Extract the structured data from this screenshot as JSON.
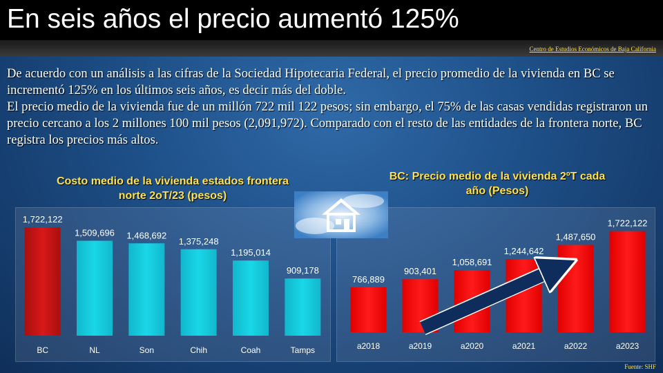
{
  "title": "En seis años el precio aumentó 125%",
  "organization": "Centro de Estudios Económicos de Baja California",
  "paragraphs": [
    "De acuerdo con un análisis a las cifras de la Sociedad Hipotecaria Federal, el precio promedio de la vivienda en BC se incrementó 125% en los últimos seis años, es decir más del doble.",
    "El precio medio de la vivienda fue de un millón 722 mil 122 pesos; sin embargo, el 75% de las casas vendidas registraron un precio cercano a los 2 millones 100 mil pesos (2,091,972). Comparado con el resto de las entidades de la frontera norte, BC registra los precios más altos."
  ],
  "source": "Fuente: SHF",
  "colors": {
    "highlight_bar": "#d81818",
    "state_bar": "#19d7e8",
    "year_bar": "#ff1a1a",
    "arrow": "#0f2d5c",
    "title_text": "#ffe14a"
  },
  "chart_data": [
    {
      "type": "bar",
      "title": "Costo medio de la vivienda estados frontera norte 2oT/23 (pesos)",
      "categories": [
        "BC",
        "NL",
        "Son",
        "Chih",
        "Coah",
        "Tamps"
      ],
      "values": [
        1722122,
        1509696,
        1468692,
        1375248,
        1195014,
        909178
      ],
      "value_labels": [
        "1,722,122",
        "1,509,696",
        "1,468,692",
        "1,375,248",
        "1,195,014",
        "909,178"
      ],
      "highlight": "BC",
      "ylim": [
        0,
        1900000
      ],
      "grid": false
    },
    {
      "type": "bar",
      "title": "BC: Precio medio de la vivienda 2ºT cada año (Pesos)",
      "categories": [
        "a2018",
        "a2019",
        "a2020",
        "a2021",
        "a2022",
        "a2023"
      ],
      "values": [
        766889,
        903401,
        1058691,
        1244642,
        1487650,
        1722122
      ],
      "value_labels": [
        "766,889",
        "903,401",
        "1,058,691",
        "1,244,642",
        "1,487,650",
        "1,722,122"
      ],
      "ylim": [
        0,
        2000000
      ],
      "grid": false,
      "annotation": "upward trend arrow"
    }
  ]
}
